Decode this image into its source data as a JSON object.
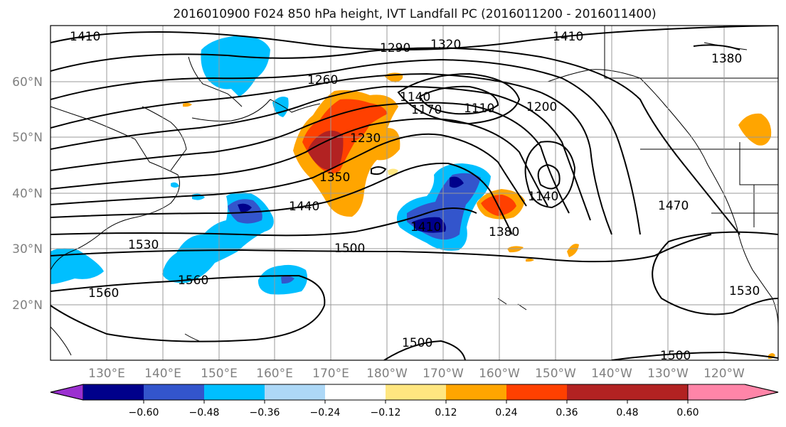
{
  "title": "2016010900 F024 850 hPa height, IVT Landfall PC (2016011200 - 2016011400)",
  "latitude_labels": [
    "60°N",
    "50°N",
    "40°N",
    "30°N",
    "20°N"
  ],
  "longitude_labels": [
    "130°E",
    "140°E",
    "150°E",
    "160°E",
    "170°E",
    "180°W",
    "170°W",
    "160°W",
    "150°W",
    "140°W",
    "130°W",
    "120°W"
  ],
  "contour_labels": [
    "1410",
    "1290",
    "1320",
    "1410",
    "1380",
    "1260",
    "1140",
    "1170",
    "1110",
    "1200",
    "1230",
    "1350",
    "1440",
    "1140",
    "1470",
    "1410",
    "1380",
    "1530",
    "1500",
    "1560",
    "1560",
    "1530",
    "1500",
    "1500"
  ],
  "colorbar": {
    "ticks": [
      "−0.60",
      "−0.48",
      "−0.36",
      "−0.24",
      "−0.12",
      "0.12",
      "0.24",
      "0.36",
      "0.48",
      "0.60"
    ],
    "colors": [
      "#9b30d0",
      "#00008b",
      "#3355cc",
      "#00bfff",
      "#add8f7",
      "#ffffff",
      "#ffe680",
      "#ffa500",
      "#ff4000",
      "#b22222",
      "#ff85a8"
    ]
  }
}
